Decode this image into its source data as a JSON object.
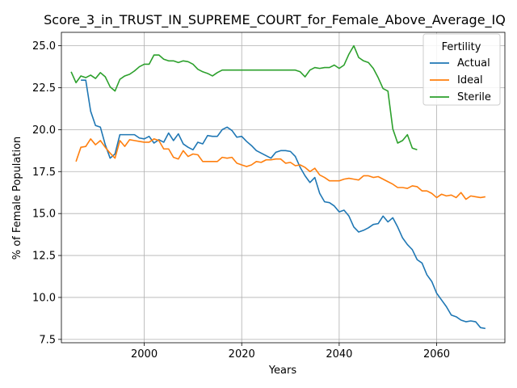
{
  "chart_data": {
    "type": "line",
    "title": "Score_3_in_TRUST_IN_SUPREME_COURT_for_Female_Above_Average_IQ",
    "xlabel": "Years",
    "ylabel": "% of Female Population",
    "xlim": [
      1983,
      2074
    ],
    "ylim": [
      7.3,
      25.8
    ],
    "xticks": [
      2000,
      2020,
      2040,
      2060
    ],
    "yticks": [
      7.5,
      10.0,
      12.5,
      15.0,
      17.5,
      20.0,
      22.5,
      25.0
    ],
    "grid": true,
    "legend": {
      "title": "Fertility",
      "placement": "top-right"
    },
    "series": [
      {
        "name": "Actual",
        "color": "#1f77b4",
        "x": [
          1987,
          1988,
          1989,
          1990,
          1991,
          1992,
          1993,
          1994,
          1995,
          1996,
          1997,
          1998,
          1999,
          2000,
          2001,
          2002,
          2003,
          2004,
          2005,
          2006,
          2007,
          2008,
          2009,
          2010,
          2011,
          2012,
          2013,
          2014,
          2015,
          2016,
          2017,
          2018,
          2019,
          2020,
          2021,
          2022,
          2023,
          2024,
          2025,
          2026,
          2027,
          2028,
          2029,
          2030,
          2031,
          2032,
          2033,
          2034,
          2035,
          2036,
          2037,
          2038,
          2039,
          2040,
          2041,
          2042,
          2043,
          2044,
          2045,
          2046,
          2047,
          2048,
          2049,
          2050,
          2051,
          2052,
          2053,
          2054,
          2055,
          2056,
          2057,
          2058,
          2059,
          2060,
          2061,
          2062,
          2063,
          2064,
          2065,
          2066,
          2067,
          2068,
          2069,
          2070
        ],
        "values": [
          22.95,
          22.95,
          21.1,
          20.25,
          20.15,
          19.1,
          18.3,
          18.55,
          19.7,
          19.7,
          19.7,
          19.7,
          19.5,
          19.45,
          19.6,
          19.2,
          19.4,
          19.25,
          19.8,
          19.35,
          19.75,
          19.15,
          18.95,
          18.8,
          19.25,
          19.15,
          19.65,
          19.6,
          19.6,
          20.0,
          20.15,
          19.95,
          19.55,
          19.6,
          19.3,
          19.05,
          18.75,
          18.6,
          18.45,
          18.3,
          18.65,
          18.75,
          18.75,
          18.7,
          18.4,
          17.75,
          17.25,
          16.85,
          17.15,
          16.2,
          15.7,
          15.65,
          15.45,
          15.1,
          15.2,
          14.85,
          14.2,
          13.9,
          14.0,
          14.15,
          14.35,
          14.4,
          14.85,
          14.5,
          14.75,
          14.2,
          13.55,
          13.15,
          12.85,
          12.25,
          12.05,
          11.35,
          10.95,
          10.25,
          9.85,
          9.45,
          8.95,
          8.85,
          8.65,
          8.55,
          8.6,
          8.55,
          8.2,
          8.15
        ]
      },
      {
        "name": "Ideal",
        "color": "#ff7f0e",
        "x": [
          1986,
          1987,
          1988,
          1989,
          1990,
          1991,
          1992,
          1993,
          1994,
          1995,
          1996,
          1997,
          1998,
          1999,
          2000,
          2001,
          2002,
          2003,
          2004,
          2005,
          2006,
          2007,
          2008,
          2009,
          2010,
          2011,
          2012,
          2013,
          2014,
          2015,
          2016,
          2017,
          2018,
          2019,
          2020,
          2021,
          2022,
          2023,
          2024,
          2025,
          2026,
          2027,
          2028,
          2029,
          2030,
          2031,
          2032,
          2033,
          2034,
          2035,
          2036,
          2037,
          2038,
          2039,
          2040,
          2041,
          2042,
          2043,
          2044,
          2045,
          2046,
          2047,
          2048,
          2049,
          2050,
          2051,
          2052,
          2053,
          2054,
          2055,
          2056,
          2057,
          2058,
          2059,
          2060,
          2061,
          2062,
          2063,
          2064,
          2065,
          2066,
          2067,
          2068,
          2069,
          2070
        ],
        "values": [
          18.1,
          18.95,
          19.0,
          19.45,
          19.1,
          19.35,
          18.95,
          18.6,
          18.3,
          19.35,
          19.0,
          19.4,
          19.35,
          19.3,
          19.25,
          19.25,
          19.45,
          19.35,
          18.85,
          18.85,
          18.35,
          18.25,
          18.75,
          18.4,
          18.55,
          18.5,
          18.1,
          18.1,
          18.1,
          18.1,
          18.35,
          18.3,
          18.35,
          18.0,
          17.9,
          17.8,
          17.9,
          18.1,
          18.05,
          18.2,
          18.2,
          18.25,
          18.25,
          18.0,
          18.05,
          17.85,
          17.9,
          17.75,
          17.5,
          17.7,
          17.3,
          17.15,
          16.95,
          16.95,
          16.95,
          17.05,
          17.1,
          17.05,
          17.0,
          17.25,
          17.25,
          17.15,
          17.2,
          17.05,
          16.9,
          16.75,
          16.55,
          16.55,
          16.5,
          16.65,
          16.6,
          16.35,
          16.35,
          16.2,
          15.95,
          16.15,
          16.05,
          16.1,
          15.95,
          16.25,
          15.85,
          16.05,
          16.0,
          15.95,
          16.0
        ]
      },
      {
        "name": "Sterile",
        "color": "#2ca02c",
        "x": [
          1985,
          1986,
          1987,
          1988,
          1989,
          1990,
          1991,
          1992,
          1993,
          1994,
          1995,
          1996,
          1997,
          1998,
          1999,
          2000,
          2001,
          2002,
          2003,
          2004,
          2005,
          2006,
          2007,
          2008,
          2009,
          2010,
          2011,
          2012,
          2013,
          2014,
          2015,
          2016,
          2017,
          2018,
          2019,
          2020,
          2021,
          2022,
          2023,
          2024,
          2025,
          2026,
          2027,
          2028,
          2029,
          2030,
          2031,
          2032,
          2033,
          2034,
          2035,
          2036,
          2037,
          2038,
          2039,
          2040,
          2041,
          2042,
          2043,
          2044,
          2045,
          2046,
          2047,
          2048,
          2049,
          2050,
          2051,
          2052,
          2053,
          2054,
          2055,
          2056
        ],
        "values": [
          23.45,
          22.8,
          23.2,
          23.1,
          23.25,
          23.05,
          23.4,
          23.15,
          22.55,
          22.3,
          23.0,
          23.2,
          23.3,
          23.5,
          23.75,
          23.9,
          23.9,
          24.45,
          24.45,
          24.2,
          24.1,
          24.1,
          24.0,
          24.1,
          24.05,
          23.9,
          23.6,
          23.45,
          23.35,
          23.2,
          23.4,
          23.55,
          23.55,
          23.55,
          23.55,
          23.55,
          23.55,
          23.55,
          23.55,
          23.55,
          23.55,
          23.55,
          23.55,
          23.55,
          23.55,
          23.55,
          23.55,
          23.45,
          23.15,
          23.55,
          23.7,
          23.65,
          23.7,
          23.7,
          23.85,
          23.65,
          23.85,
          24.5,
          25.0,
          24.3,
          24.1,
          24.0,
          23.65,
          23.1,
          22.45,
          22.3,
          20.05,
          19.2,
          19.35,
          19.7,
          18.9,
          18.8
        ]
      }
    ]
  }
}
